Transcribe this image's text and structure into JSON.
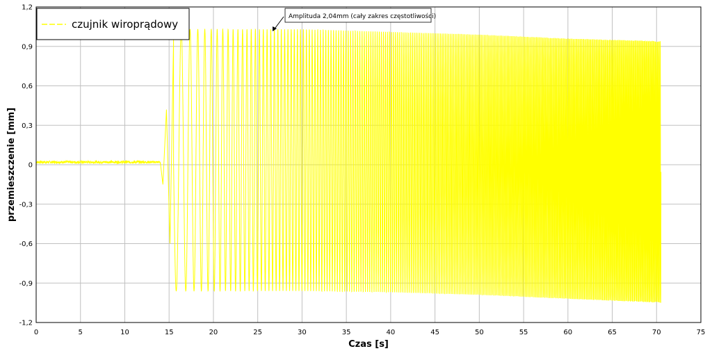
{
  "chart_data": {
    "type": "line",
    "xlabel": "Czas [s]",
    "ylabel": "przemieszczenie [mm]",
    "xlim": [
      0,
      75
    ],
    "ylim": [
      -1.2,
      1.2
    ],
    "x_ticks": [
      0,
      5,
      10,
      15,
      20,
      25,
      30,
      35,
      40,
      45,
      50,
      55,
      60,
      65,
      70,
      75
    ],
    "y_ticks": [
      "1,2",
      "0,9",
      "0,6",
      "0,3",
      "0",
      "-0,3",
      "-0,6",
      "-0,9",
      "-1,2"
    ],
    "y_tick_values": [
      1.2,
      0.9,
      0.6,
      0.3,
      0,
      -0.3,
      -0.6,
      -0.9,
      -1.2
    ],
    "grid": true,
    "legend_position": "top-left",
    "series": [
      {
        "name": "czujnik wiroprądowy",
        "color": "#ffff00",
        "description_points": {
          "baseline": {
            "t": [
              0,
              14
            ],
            "y": 0.02,
            "noise": 0.02
          },
          "transition": [
            [
              14.0,
              0.02
            ],
            [
              14.3,
              -0.15
            ],
            [
              14.7,
              0.42
            ],
            [
              15.1,
              -0.6
            ],
            [
              15.5,
              0.95
            ]
          ],
          "sweep_start_s": 15.5,
          "sweep_end_s": 70.5,
          "sweep_start_freq_hz": 0.8,
          "sweep_end_freq_hz": 9,
          "envelope": {
            "t": [
              16,
              20,
              30,
              40,
              50,
              60,
              70.5
            ],
            "upper": [
              1.03,
              1.03,
              1.03,
              1.01,
              0.99,
              0.96,
              0.94
            ],
            "lower": [
              -0.96,
              -0.96,
              -0.96,
              -0.97,
              -0.99,
              -1.02,
              -1.05
            ]
          }
        }
      }
    ],
    "annotations": [
      {
        "text": "Amplituda 2,04mm (cały zakres częstotliwości)",
        "x": 27,
        "y": 1.07
      }
    ]
  }
}
